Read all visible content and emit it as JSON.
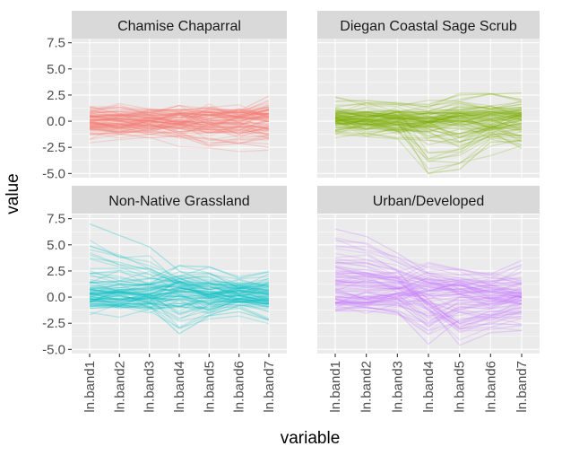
{
  "chart_data": {
    "type": "line",
    "facet_style": "2x2 grid, parallel-coordinate lines per observation",
    "xlabel": "variable",
    "ylabel": "value",
    "x": [
      "ln.band1",
      "ln.band2",
      "ln.band3",
      "ln.band4",
      "ln.band5",
      "ln.band6",
      "ln.band7"
    ],
    "ylim": [
      -5.4,
      7.9
    ],
    "y_ticks": [
      -5.0,
      -2.5,
      0.0,
      2.5,
      5.0,
      7.5
    ],
    "y_tick_labels": [
      "-5.0",
      "-2.5",
      "0.0",
      "2.5",
      "5.0",
      "7.5"
    ],
    "grid": true,
    "legend": "none",
    "line_opacity": 0.22,
    "panels": [
      {
        "strip": "Chamise Chaparral",
        "color": "#F8766D",
        "representative_lines": [
          [
            0.4,
            0.3,
            0.5,
            0.8,
            0.6,
            0.3,
            1.2
          ],
          [
            -0.5,
            -0.6,
            -0.4,
            -1.0,
            -0.8,
            -1.2,
            -0.6
          ],
          [
            1.2,
            1.3,
            1.2,
            1.0,
            1.3,
            1.0,
            2.4
          ],
          [
            -1.1,
            -1.2,
            -1.6,
            -1.4,
            -2.4,
            -2.1,
            -2.5
          ],
          [
            0.1,
            0.2,
            0.0,
            -0.3,
            0.5,
            1.1,
            0.7
          ]
        ]
      },
      {
        "strip": "Diegan Coastal Sage Scrub",
        "color": "#7CAE00",
        "representative_lines": [
          [
            1.9,
            2.0,
            1.7,
            1.6,
            2.5,
            2.6,
            2.7
          ],
          [
            0.2,
            0.1,
            0.0,
            -5.0,
            -4.6,
            -2.0,
            -1.9
          ],
          [
            -0.6,
            -0.7,
            -0.8,
            -1.0,
            -2.5,
            -1.0,
            -2.6
          ],
          [
            0.8,
            0.9,
            1.0,
            0.6,
            1.2,
            1.4,
            1.0
          ],
          [
            -0.2,
            -0.3,
            -0.5,
            -0.4,
            0.1,
            -0.6,
            0.4
          ]
        ]
      },
      {
        "strip": "Non-Native Grassland",
        "color": "#00BFC4",
        "representative_lines": [
          [
            7.0,
            5.9,
            4.8,
            2.5,
            1.4,
            1.0,
            0.2
          ],
          [
            1.4,
            1.5,
            1.8,
            3.0,
            2.9,
            1.8,
            2.4
          ],
          [
            -0.4,
            -0.5,
            -0.9,
            -3.5,
            -1.8,
            -1.4,
            -2.2
          ],
          [
            0.3,
            0.4,
            0.2,
            1.5,
            0.7,
            1.4,
            1.1
          ],
          [
            -0.9,
            -0.8,
            -1.0,
            -0.6,
            -1.2,
            -0.4,
            -0.9
          ]
        ]
      },
      {
        "strip": "Urban/Developed",
        "color": "#C77CFF",
        "representative_lines": [
          [
            6.5,
            5.8,
            4.2,
            2.3,
            1.8,
            1.2,
            0.5
          ],
          [
            3.3,
            3.2,
            2.6,
            -1.0,
            -4.6,
            -3.4,
            -3.2
          ],
          [
            -1.2,
            -1.0,
            -1.4,
            -4.5,
            -2.1,
            -1.8,
            -1.0
          ],
          [
            2.4,
            2.2,
            1.8,
            3.2,
            2.6,
            2.2,
            3.5
          ],
          [
            -0.8,
            -0.6,
            -0.2,
            0.6,
            1.3,
            -0.1,
            0.3
          ]
        ]
      }
    ]
  }
}
